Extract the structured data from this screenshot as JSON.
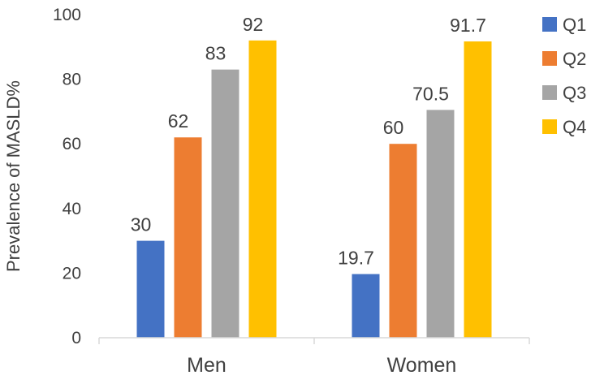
{
  "chart_data": {
    "type": "bar",
    "title": "",
    "xlabel": "",
    "ylabel": "Prevalence of MASLD%",
    "ylim": [
      0,
      100
    ],
    "yticks": [
      0,
      20,
      40,
      60,
      80,
      100
    ],
    "grid": false,
    "legend_position": "right",
    "categories": [
      "Men",
      "Women"
    ],
    "series": [
      {
        "name": "Q1",
        "color": "#4472C4",
        "values": [
          30,
          19.7
        ]
      },
      {
        "name": "Q2",
        "color": "#ED7D31",
        "values": [
          62,
          60
        ]
      },
      {
        "name": "Q3",
        "color": "#A5A5A5",
        "values": [
          83,
          70.5
        ]
      },
      {
        "name": "Q4",
        "color": "#FFC000",
        "values": [
          92,
          91.7
        ]
      }
    ]
  }
}
